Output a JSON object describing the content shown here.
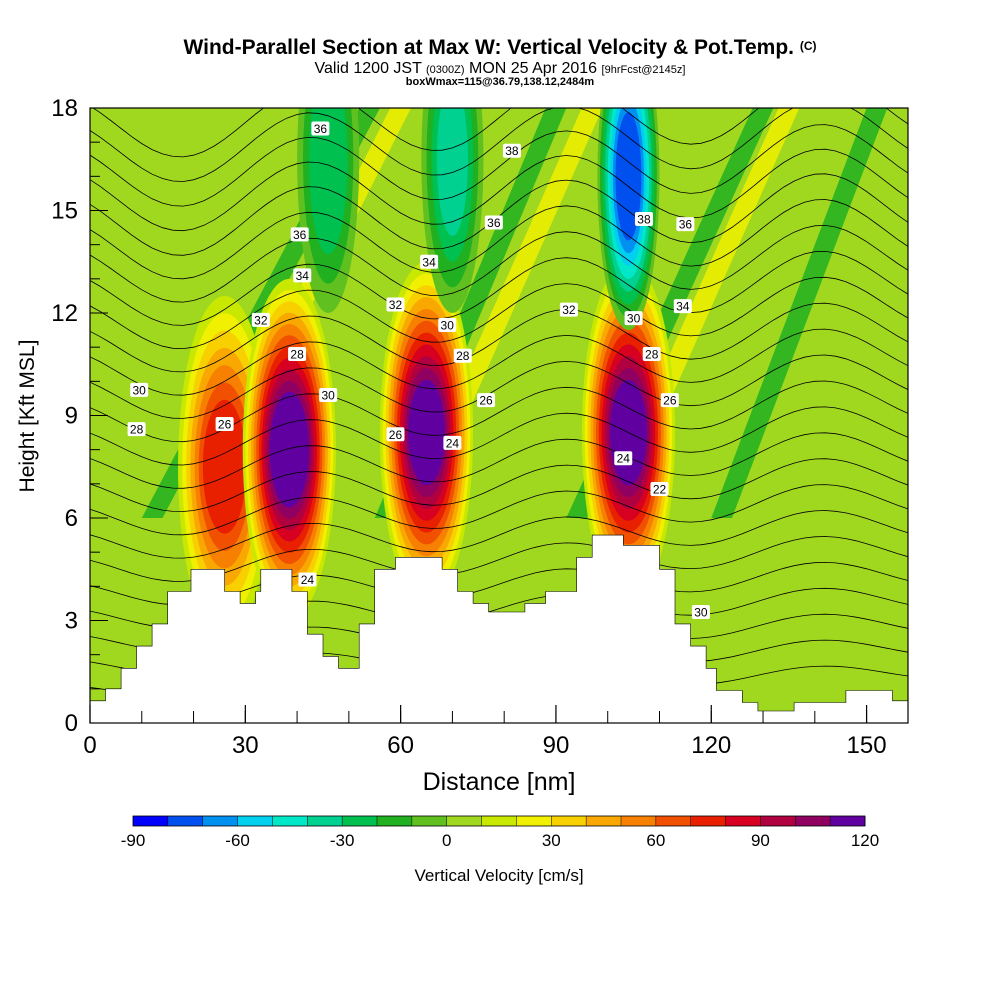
{
  "title": {
    "main": "Wind-Parallel Section at Max W: Vertical Velocity & Pot.Temp.",
    "main_sup": "(C)",
    "line2_a": "Valid 1200 JST",
    "line2_b": "(0300Z)",
    "line2_c": "MON 25 Apr 2016",
    "line2_d": "[9hrFcst@2145z]",
    "line3": "boxWmax=115@36.79,138.12,2484m"
  },
  "chart_data": {
    "type": "heatmap",
    "xlabel": "Distance [nm]",
    "ylabel": "Height [Kft MSL]",
    "xlim": [
      0,
      158
    ],
    "ylim": [
      0,
      18
    ],
    "x_ticks": [
      0,
      30,
      60,
      90,
      120,
      150
    ],
    "y_ticks": [
      0,
      3,
      6,
      9,
      12,
      15,
      18
    ],
    "colorbar": {
      "label": "Vertical Velocity [cm/s]",
      "ticks": [
        -90,
        -60,
        -30,
        0,
        30,
        60,
        90,
        120
      ],
      "levels": [
        -90,
        -80,
        -70,
        -60,
        -50,
        -40,
        -30,
        -20,
        -10,
        0,
        10,
        20,
        30,
        40,
        50,
        60,
        70,
        80,
        90,
        100,
        110,
        120
      ],
      "colors": [
        "#0000ff",
        "#0050f0",
        "#0090f0",
        "#00d0f0",
        "#00e8c8",
        "#00d090",
        "#00c050",
        "#20b020",
        "#60c020",
        "#a0d820",
        "#c8e800",
        "#f0f000",
        "#f8d000",
        "#f8a800",
        "#f88000",
        "#f05000",
        "#e82000",
        "#d80020",
        "#b00040",
        "#900060",
        "#6000a0"
      ]
    },
    "terrain": [
      [
        0,
        0.65
      ],
      [
        3,
        0.65
      ],
      [
        3,
        1.0
      ],
      [
        6,
        1.0
      ],
      [
        6,
        1.6
      ],
      [
        9,
        1.6
      ],
      [
        9,
        2.25
      ],
      [
        12,
        2.25
      ],
      [
        12,
        2.9
      ],
      [
        15,
        2.9
      ],
      [
        15,
        3.85
      ],
      [
        19.5,
        3.85
      ],
      [
        19.5,
        4.5
      ],
      [
        26,
        4.5
      ],
      [
        26,
        3.85
      ],
      [
        29,
        3.85
      ],
      [
        29,
        3.5
      ],
      [
        32,
        3.5
      ],
      [
        32,
        3.85
      ],
      [
        33,
        3.85
      ],
      [
        33,
        4.5
      ],
      [
        39,
        4.5
      ],
      [
        39,
        3.85
      ],
      [
        42,
        3.85
      ],
      [
        42,
        2.6
      ],
      [
        45,
        2.6
      ],
      [
        45,
        1.95
      ],
      [
        48,
        1.95
      ],
      [
        48,
        1.6
      ],
      [
        52,
        1.6
      ],
      [
        52,
        2.9
      ],
      [
        55,
        2.9
      ],
      [
        55,
        4.5
      ],
      [
        59,
        4.5
      ],
      [
        59,
        4.85
      ],
      [
        68,
        4.85
      ],
      [
        68,
        4.5
      ],
      [
        71,
        4.5
      ],
      [
        71,
        3.85
      ],
      [
        74,
        3.85
      ],
      [
        74,
        3.5
      ],
      [
        77,
        3.5
      ],
      [
        77,
        3.25
      ],
      [
        84,
        3.25
      ],
      [
        84,
        3.5
      ],
      [
        88,
        3.5
      ],
      [
        88,
        3.85
      ],
      [
        94,
        3.85
      ],
      [
        94,
        4.85
      ],
      [
        97,
        4.85
      ],
      [
        97,
        5.5
      ],
      [
        103,
        5.5
      ],
      [
        103,
        5.2
      ],
      [
        110,
        5.2
      ],
      [
        110,
        4.5
      ],
      [
        113,
        4.5
      ],
      [
        113,
        2.9
      ],
      [
        116,
        2.9
      ],
      [
        116,
        2.25
      ],
      [
        119,
        2.25
      ],
      [
        119,
        1.6
      ],
      [
        121,
        1.6
      ],
      [
        121,
        0.95
      ],
      [
        126,
        0.95
      ],
      [
        126,
        0.6
      ],
      [
        129,
        0.6
      ],
      [
        129,
        0.35
      ],
      [
        136,
        0.35
      ],
      [
        136,
        0.6
      ],
      [
        146,
        0.6
      ],
      [
        146,
        0.95
      ],
      [
        155,
        0.95
      ],
      [
        155,
        0.65
      ],
      [
        158,
        0.65
      ]
    ],
    "updrafts": [
      {
        "x": 26,
        "z": 7.5,
        "w": 75
      },
      {
        "x": 38.5,
        "z": 8.0,
        "w": 115
      },
      {
        "x": 65,
        "z": 8.5,
        "w": 110
      },
      {
        "x": 104,
        "z": 8.5,
        "w": 110
      }
    ],
    "downdrafts": [
      {
        "x": 46,
        "z": 16.5,
        "w": -35
      },
      {
        "x": 70,
        "z": 16.5,
        "w": -40
      },
      {
        "x": 104,
        "z": 16.0,
        "w": -80
      }
    ],
    "theta_labels": [
      {
        "text": "36",
        "x": 44.5,
        "z": 17.4
      },
      {
        "text": "38",
        "x": 81.5,
        "z": 16.75
      },
      {
        "text": "36",
        "x": 40.5,
        "z": 14.3
      },
      {
        "text": "36",
        "x": 78,
        "z": 14.65
      },
      {
        "text": "38",
        "x": 107,
        "z": 14.75
      },
      {
        "text": "36",
        "x": 115,
        "z": 14.6
      },
      {
        "text": "34",
        "x": 41,
        "z": 13.1
      },
      {
        "text": "34",
        "x": 65.5,
        "z": 13.5
      },
      {
        "text": "32",
        "x": 33,
        "z": 11.8
      },
      {
        "text": "32",
        "x": 59,
        "z": 12.25
      },
      {
        "text": "32",
        "x": 92.5,
        "z": 12.1
      },
      {
        "text": "34",
        "x": 114.5,
        "z": 12.2
      },
      {
        "text": "30",
        "x": 69,
        "z": 11.65
      },
      {
        "text": "30",
        "x": 105,
        "z": 11.85
      },
      {
        "text": "28",
        "x": 40,
        "z": 10.8
      },
      {
        "text": "28",
        "x": 72,
        "z": 10.75
      },
      {
        "text": "28",
        "x": 108.5,
        "z": 10.8
      },
      {
        "text": "30",
        "x": 9.5,
        "z": 9.75
      },
      {
        "text": "30",
        "x": 46,
        "z": 9.6
      },
      {
        "text": "26",
        "x": 76.5,
        "z": 9.45
      },
      {
        "text": "26",
        "x": 112,
        "z": 9.45
      },
      {
        "text": "28",
        "x": 9,
        "z": 8.6
      },
      {
        "text": "26",
        "x": 26,
        "z": 8.75
      },
      {
        "text": "26",
        "x": 59,
        "z": 8.45
      },
      {
        "text": "24",
        "x": 70,
        "z": 8.2
      },
      {
        "text": "24",
        "x": 103,
        "z": 7.75
      },
      {
        "text": "22",
        "x": 110,
        "z": 6.85
      },
      {
        "text": "24",
        "x": 42,
        "z": 4.2
      },
      {
        "text": "30",
        "x": 118,
        "z": 3.25
      }
    ]
  }
}
